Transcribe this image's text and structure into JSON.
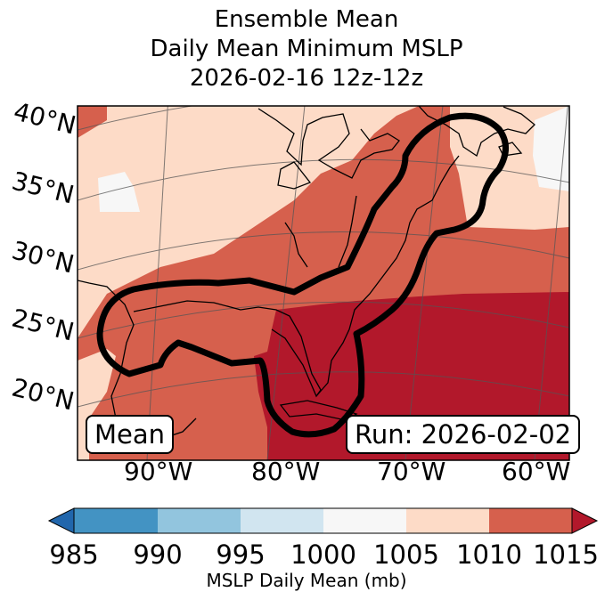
{
  "title": {
    "line1": "Ensemble Mean",
    "line2": "Daily Mean Minimum MSLP",
    "line3": "2026-02-16 12z-12z"
  },
  "map": {
    "lat_labels": [
      "40°N",
      "35°N",
      "30°N",
      "25°N",
      "20°N"
    ],
    "lon_labels": [
      "90°W",
      "80°W",
      "70°W",
      "60°W"
    ],
    "label_left": "Mean",
    "label_right": "Run: 2026-02-02",
    "colors": {
      "band_985_990": "#4393c3",
      "band_990_995": "#92c5de",
      "band_995_1000": "#d1e5f0",
      "band_1000_1005": "#f7f7f7",
      "band_1005_1010": "#fddbc7",
      "band_1010_1015": "#d6604d",
      "band_over_1015": "#b2182b",
      "under_985": "#2166ac"
    }
  },
  "colorbar": {
    "ticks": [
      "985",
      "990",
      "995",
      "1000",
      "1005",
      "1010",
      "1015"
    ],
    "label": "MSLP Daily Mean (mb)"
  }
}
